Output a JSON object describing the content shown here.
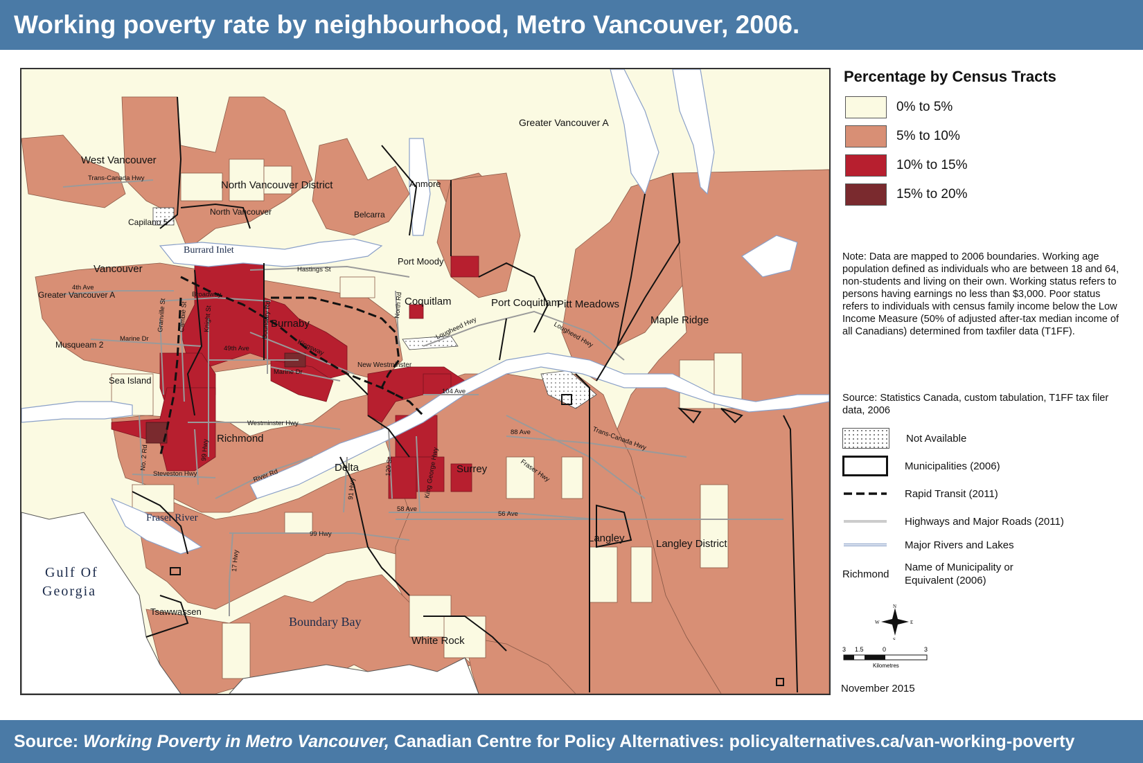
{
  "title": "Working poverty rate by neighbourhood, Metro Vancouver, 2006.",
  "source_banner": {
    "prefix": "Source: ",
    "italic": "Working Poverty in Metro Vancouver,",
    "suffix": " Canadian Centre for Policy Alternatives: policyalternatives.ca/van-working-poverty"
  },
  "colors": {
    "banner": "#4a7aa6",
    "class_0_5": "#fbfae2",
    "class_5_10": "#d88f75",
    "class_10_15": "#b71f2f",
    "class_15_20": "#7a2a2e",
    "water": "#ffffff"
  },
  "legend": {
    "title": "Percentage by Census Tracts",
    "classes": [
      {
        "label": "0% to 5%",
        "color": "#fbfae2"
      },
      {
        "label": "5% to 10%",
        "color": "#d88f75"
      },
      {
        "label": "10% to 15%",
        "color": "#b71f2f"
      },
      {
        "label": "15% to 20%",
        "color": "#7a2a2e"
      }
    ],
    "note": "Note: Data are mapped to 2006 boundaries. Working age population defined as individuals who are between 18 and 64, non-students and living on their own. Working status refers to persons having earnings no less than $3,000. Poor status refers to individuals with census family income below the Low Income Measure (50% of adjusted after-tax median income of all Canadians) determined from taxfiler data (T1FF).",
    "source": "Source: Statistics Canada, custom tabulation, T1FF tax filer data, 2006",
    "symbols": [
      {
        "label": "Not Available"
      },
      {
        "label": "Municipalities (2006)"
      },
      {
        "label": "Rapid Transit  (2011)"
      },
      {
        "label": "Highways and Major Roads (2011)"
      },
      {
        "label": "Major Rivers and Lakes"
      },
      {
        "label": "Name of Municipality or Equivalent (2006)",
        "sample": "Richmond"
      }
    ],
    "scale": {
      "ticks": [
        "3",
        "1.5",
        "0",
        "3"
      ],
      "unit": "Kilometres"
    },
    "compass": {
      "n": "N",
      "s": "S",
      "e": "E",
      "w": "W"
    },
    "date": "November 2015"
  },
  "map": {
    "municipalities": [
      "West Vancouver",
      "North Vancouver District",
      "North Vancouver",
      "Anmore",
      "Belcarra",
      "Greater Vancouver A",
      "Vancouver",
      "Greater Vancouver A",
      "Burnaby",
      "Coquitlam",
      "Port Coquitlam",
      "Port Moody",
      "Pitt Meadows",
      "Maple Ridge",
      "New Westminster",
      "Musqueam 2",
      "Capilano 5",
      "Sea Island",
      "Richmond",
      "Delta",
      "Surrey",
      "Langley",
      "Langley District",
      "Tsawwassen",
      "White Rock"
    ],
    "roads": [
      "Trans-Canada Hwy",
      "Hastings St",
      "4th Ave",
      "Broadway",
      "Marine Dr",
      "Granville St",
      "Cambie St",
      "Knight St",
      "Boundary Rd",
      "49th Ave",
      "Kingsway",
      "Marine Dr",
      "North Rd",
      "Lougheed Hwy",
      "Lougheed Hwy",
      "104 Ave",
      "88 Ave",
      "Trans-Canada Hwy",
      "Fraser Hwy",
      "Westminster Hwy",
      "No. 2 Rd",
      "99 Hwy",
      "Steveston Hwy",
      "River Rd",
      "91 Hwy",
      "120 St",
      "King George Hwy",
      "58 Ave",
      "56 Ave",
      "99 Hwy",
      "17 Hwy"
    ],
    "water": [
      "Burrard Inlet",
      "Fraser River",
      "Gulf Of",
      "Georgia",
      "Boundary Bay"
    ]
  }
}
